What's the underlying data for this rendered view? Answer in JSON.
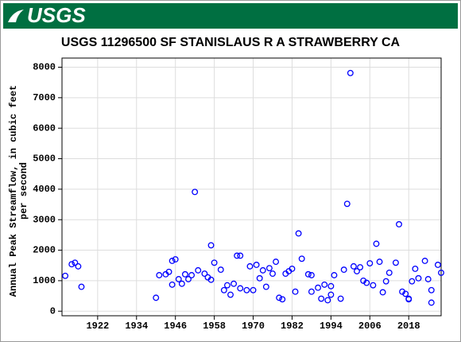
{
  "chart_data": {
    "type": "scatter",
    "logo_text": "USGS",
    "title": "USGS 11296500 SF STANISLAUS R A STRAWBERRY CA",
    "y_label": [
      "Annual Peak Streamflow, in cubic feet",
      "per second"
    ],
    "color": "#0000ff",
    "grid": true,
    "xlim": [
      1911,
      2028
    ],
    "ylim": [
      -150,
      8300
    ],
    "xticks": [
      1922,
      1934,
      1946,
      1958,
      1970,
      1982,
      1994,
      2006,
      2018
    ],
    "yticks": [
      0,
      1000,
      2000,
      3000,
      4000,
      5000,
      6000,
      7000,
      8000
    ],
    "x": [
      1912,
      1914,
      1915,
      1916,
      1917,
      1940,
      1941,
      1943,
      1944,
      1945,
      1945,
      1946,
      1947,
      1948,
      1949,
      1950,
      1951,
      1952,
      1953,
      1955,
      1956,
      1957,
      1957,
      1958,
      1960,
      1961,
      1962,
      1963,
      1964,
      1965,
      1966,
      1966,
      1968,
      1969,
      1970,
      1971,
      1972,
      1973,
      1974,
      1975,
      1976,
      1977,
      1978,
      1979,
      1980,
      1981,
      1982,
      1983,
      1984,
      1985,
      1987,
      1988,
      1988,
      1990,
      1991,
      1992,
      1993,
      1994,
      1994,
      1995,
      1997,
      1998,
      1999,
      2000,
      2001,
      2002,
      2003,
      2004,
      2005,
      2006,
      2007,
      2008,
      2009,
      2010,
      2011,
      2012,
      2014,
      2015,
      2016,
      2017,
      2018,
      2018,
      2019,
      2020,
      2021,
      2023,
      2024,
      2025,
      2025,
      2027,
      2028
    ],
    "values": [
      1160,
      1540,
      1590,
      1470,
      800,
      440,
      1180,
      1210,
      1290,
      1650,
      870,
      1700,
      1050,
      900,
      1210,
      1050,
      1180,
      3910,
      1340,
      1230,
      1110,
      1030,
      2160,
      1590,
      1360,
      690,
      850,
      540,
      900,
      1820,
      750,
      1820,
      690,
      1470,
      690,
      1520,
      1080,
      1340,
      800,
      1410,
      1230,
      1620,
      440,
      390,
      1230,
      1310,
      1390,
      640,
      2550,
      1720,
      1210,
      640,
      1180,
      770,
      410,
      870,
      360,
      820,
      540,
      1180,
      410,
      1360,
      3520,
      7810,
      1470,
      1310,
      1440,
      1000,
      930,
      1570,
      850,
      2210,
      1620,
      620,
      980,
      1260,
      1590,
      2850,
      640,
      570,
      390,
      410,
      980,
      1390,
      1080,
      1650,
      1050,
      280,
      690,
      1520,
      1260
    ]
  }
}
